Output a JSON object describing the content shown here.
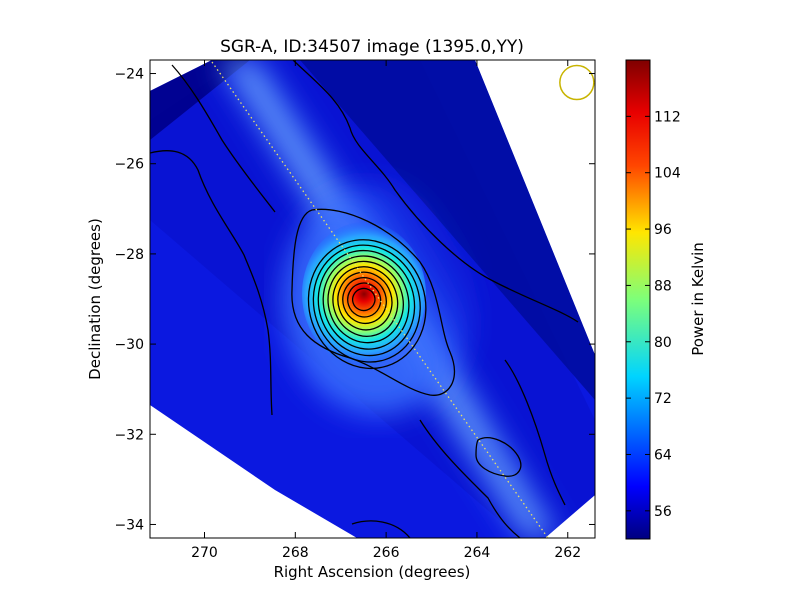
{
  "chart_data": {
    "type": "heatmap",
    "title": "SGR-A, ID:34507 image (1395.0,YY)",
    "xlabel": "Right Ascension (degrees)",
    "ylabel": "Declination (degrees)",
    "xlim": [
      271.2,
      261.4
    ],
    "ylim": [
      -34.3,
      -23.7
    ],
    "x_ticks": [
      270,
      268,
      266,
      264,
      262
    ],
    "x_tick_labels": [
      "270",
      "268",
      "266",
      "264",
      "262"
    ],
    "y_ticks": [
      -24,
      -26,
      -28,
      -30,
      -32,
      -34
    ],
    "y_tick_labels": [
      "−24",
      "−26",
      "−28",
      "−30",
      "−32",
      "−34"
    ],
    "colorbar": {
      "label": "Power in Kelvin",
      "range": [
        52,
        120
      ],
      "ticks": [
        56,
        64,
        72,
        80,
        88,
        96,
        104,
        112
      ],
      "tick_labels": [
        "56",
        "64",
        "72",
        "80",
        "88",
        "96",
        "104",
        "112"
      ],
      "colormap": "jet"
    },
    "peak": {
      "ra": 266.5,
      "dec": -29.0,
      "value": 118
    },
    "secondary_source": {
      "ra": 263.7,
      "dec": -32.4
    },
    "contour_count": 12,
    "beam_marker": {
      "ra": 261.8,
      "dec": -24.2,
      "color": "#c8b400"
    }
  }
}
